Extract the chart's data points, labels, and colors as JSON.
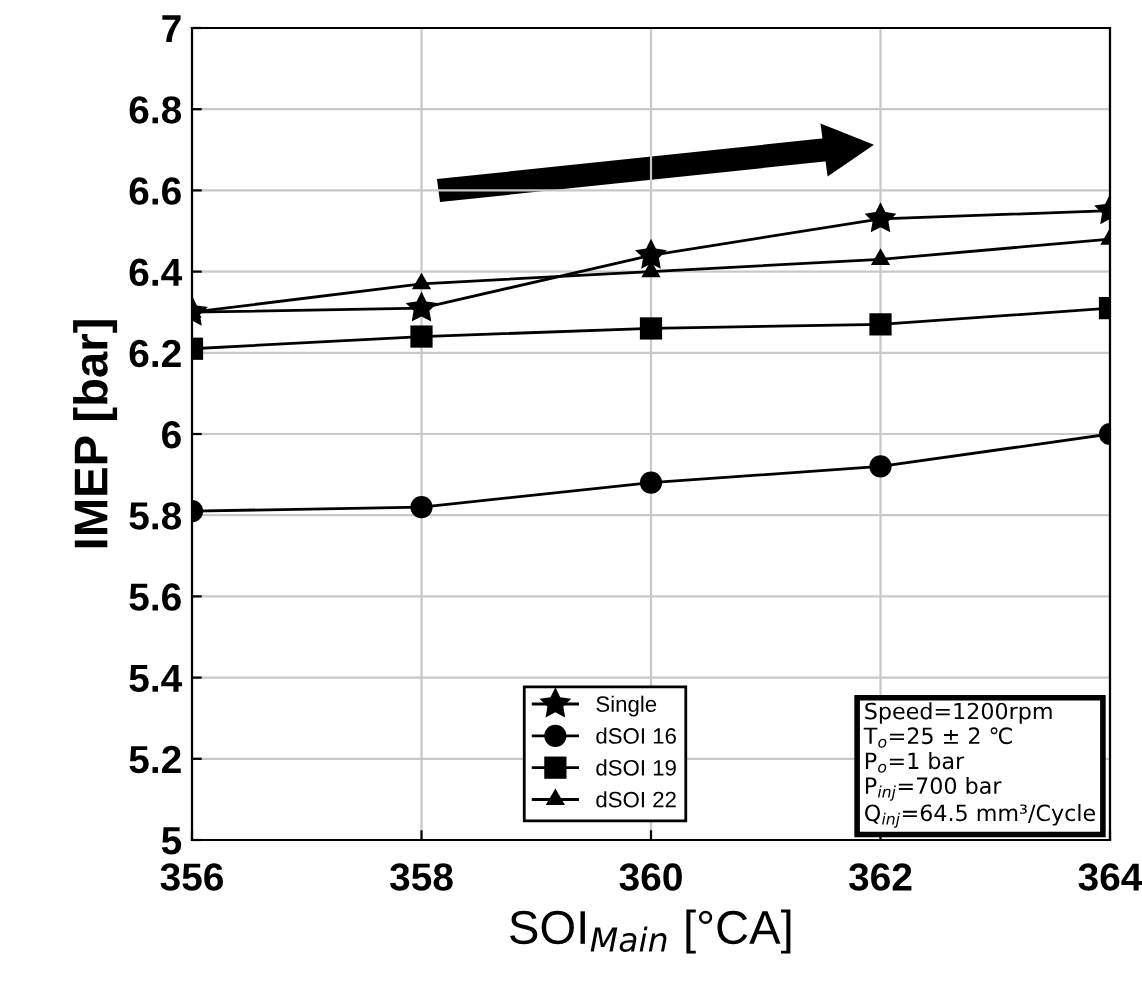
{
  "chart_data": {
    "type": "line",
    "xlabel": "SOI$_{Main}$ [°CA]",
    "ylabel": "IMEP [bar]",
    "x": [
      356,
      358,
      360,
      362,
      364
    ],
    "xlim": [
      356,
      364
    ],
    "xticks": [
      356,
      358,
      360,
      362,
      364
    ],
    "ylim": [
      5,
      7
    ],
    "yticks": [
      5,
      5.2,
      5.4,
      5.6,
      5.8,
      6,
      6.2,
      6.4,
      6.6,
      6.8,
      7
    ],
    "grid": true,
    "legend": "bottom",
    "series": [
      {
        "name": "Single",
        "color": "#000000",
        "marker": "star",
        "values": [
          6.3,
          6.31,
          6.44,
          6.53,
          6.55
        ]
      },
      {
        "name": "dSOI 16",
        "color": "#000000",
        "marker": "circle",
        "values": [
          5.81,
          5.82,
          5.88,
          5.92,
          6.0
        ]
      },
      {
        "name": "dSOI 19",
        "color": "#000000",
        "marker": "square",
        "values": [
          6.21,
          6.24,
          6.26,
          6.27,
          6.31
        ]
      },
      {
        "name": "dSOI 22",
        "color": "#000000",
        "marker": "triangle",
        "values": [
          6.3,
          6.37,
          6.4,
          6.43,
          6.48
        ]
      }
    ],
    "annotations": [
      "Speed=1200rpm\nT$_{o}$=25 ± 2 ℃\nP$_{o}$=1 bar\nP$_{inj}$=700 bar\nQ$_{inj}$=64.5 mm³/Cycle"
    ]
  }
}
